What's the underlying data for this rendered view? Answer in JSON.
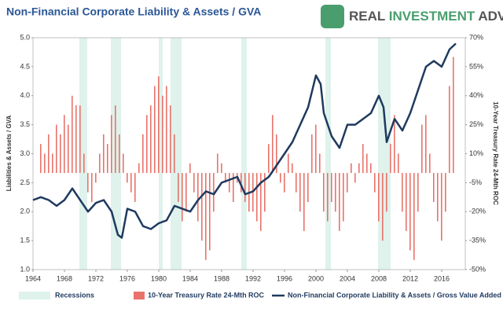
{
  "chart_data": {
    "type": "combo",
    "title": "Non-Financial Corporate Liability & Assets / GVA",
    "logo": [
      "REAL",
      "INVESTMENT",
      "ADVICE"
    ],
    "ylabel": "Liabilities & Assets / GVA",
    "y2label": "10-Year Treasury Rate 24-Mth ROC",
    "xlim": [
      1964,
      2019
    ],
    "xticks": [
      1964,
      1968,
      1972,
      1976,
      1980,
      1984,
      1988,
      1992,
      1996,
      2000,
      2004,
      2008,
      2012,
      2016
    ],
    "ylim": [
      1,
      5
    ],
    "yticks": [
      {
        "value": 1,
        "label": "1.0"
      },
      1.5,
      {
        "value": 2,
        "label": "2.0"
      },
      2.5,
      {
        "value": 3,
        "label": "3.0"
      },
      3.5,
      {
        "value": 4,
        "label": "4.0"
      },
      4.5,
      {
        "value": 5,
        "label": "5.0"
      }
    ],
    "y2lim": [
      -50,
      70
    ],
    "y2ticks": [
      {
        "value": -50,
        "label": "-50%"
      },
      {
        "value": -35,
        "label": "-35%"
      },
      {
        "value": -20,
        "label": "-20%"
      },
      {
        "value": -5,
        "label": "-5%"
      },
      {
        "value": 10,
        "label": "10%"
      },
      {
        "value": 25,
        "label": "25%"
      },
      {
        "value": 40,
        "label": "40%"
      },
      {
        "value": 55,
        "label": "55%"
      },
      {
        "value": 70,
        "label": "70%"
      }
    ],
    "recessions": {
      "name": "Recessions",
      "color": "#dff2ec",
      "spans": [
        [
          1969.9,
          1970.9
        ],
        [
          1973.9,
          1975.2
        ],
        [
          1980.0,
          1980.5
        ],
        [
          1981.5,
          1982.9
        ],
        [
          1990.5,
          1991.2
        ],
        [
          2001.2,
          2001.9
        ],
        [
          2007.9,
          2009.5
        ]
      ]
    },
    "series": [
      {
        "name": "10-Year Treasury Rate 24-Mth ROC",
        "type": "bar",
        "axis": "y2",
        "color": "#e8736b",
        "x": [
          1965,
          1965.5,
          1966,
          1966.5,
          1967,
          1967.5,
          1968,
          1968.5,
          1969,
          1969.5,
          1970,
          1970.5,
          1971,
          1971.5,
          1972,
          1972.5,
          1973,
          1973.5,
          1974,
          1974.5,
          1975,
          1975.5,
          1976,
          1976.5,
          1977,
          1977.5,
          1978,
          1978.5,
          1979,
          1979.5,
          1980,
          1980.5,
          1981,
          1981.5,
          1982,
          1982.5,
          1983,
          1983.5,
          1984,
          1984.5,
          1985,
          1985.5,
          1986,
          1986.5,
          1987,
          1987.5,
          1988,
          1988.5,
          1989,
          1989.5,
          1990,
          1990.5,
          1991,
          1991.5,
          1992,
          1992.5,
          1993,
          1993.5,
          1994,
          1994.5,
          1995,
          1995.5,
          1996,
          1996.5,
          1997,
          1997.5,
          1998,
          1998.5,
          1999,
          1999.5,
          2000,
          2000.5,
          2001,
          2001.5,
          2002,
          2002.5,
          2003,
          2003.5,
          2004,
          2004.5,
          2005,
          2005.5,
          2006,
          2006.5,
          2007,
          2007.5,
          2008,
          2008.5,
          2009,
          2009.5,
          2010,
          2010.5,
          2011,
          2011.5,
          2012,
          2012.5,
          2013,
          2013.5,
          2014,
          2014.5,
          2015,
          2015.5,
          2016,
          2016.5,
          2017,
          2017.5
        ],
        "values": [
          15,
          10,
          20,
          10,
          25,
          20,
          30,
          25,
          40,
          35,
          35,
          10,
          -10,
          -15,
          -5,
          10,
          20,
          15,
          30,
          35,
          20,
          10,
          -5,
          -10,
          -15,
          5,
          20,
          30,
          35,
          45,
          50,
          40,
          45,
          35,
          20,
          -15,
          -25,
          -20,
          5,
          -10,
          -25,
          -35,
          -45,
          -40,
          -20,
          10,
          5,
          -5,
          -10,
          -15,
          -5,
          -10,
          -15,
          -20,
          -20,
          -25,
          -30,
          -20,
          15,
          30,
          20,
          -5,
          -10,
          10,
          5,
          -10,
          -20,
          -30,
          -15,
          20,
          25,
          10,
          -20,
          -25,
          -15,
          -20,
          -30,
          -25,
          -10,
          5,
          -5,
          5,
          15,
          10,
          5,
          -10,
          -25,
          -35,
          -20,
          15,
          30,
          10,
          -20,
          -30,
          -40,
          -45,
          -20,
          25,
          30,
          10,
          -15,
          -25,
          -35,
          -20,
          45,
          60
        ]
      },
      {
        "name": "Non-Financial Corporate Liability & Assets / Gross Value Added",
        "type": "line",
        "color": "#1f3a5f",
        "x": [
          1964,
          1965,
          1966,
          1967,
          1968,
          1969,
          1970,
          1971,
          1972,
          1973,
          1974,
          1974.8,
          1975.3,
          1976,
          1977,
          1978,
          1979,
          1980,
          1981,
          1982,
          1983,
          1984,
          1985,
          1986,
          1987,
          1988,
          1989,
          1990,
          1991,
          1992,
          1993,
          1994,
          1995,
          1996,
          1997,
          1998,
          1999,
          2000,
          2000.6,
          2001,
          2002,
          2003,
          2004,
          2005,
          2006,
          2007,
          2008,
          2008.6,
          2009,
          2010,
          2011,
          2012,
          2013,
          2014,
          2015,
          2016,
          2017,
          2017.8
        ],
        "values": [
          2.2,
          2.25,
          2.2,
          2.1,
          2.2,
          2.4,
          2.2,
          2.0,
          2.15,
          2.2,
          2.0,
          1.6,
          1.55,
          2.05,
          2.0,
          1.75,
          1.7,
          1.8,
          1.85,
          2.1,
          2.05,
          2.0,
          2.2,
          2.35,
          2.3,
          2.5,
          2.55,
          2.6,
          2.3,
          2.35,
          2.5,
          2.6,
          2.8,
          3.0,
          3.2,
          3.5,
          3.8,
          4.35,
          4.2,
          3.7,
          3.3,
          3.1,
          3.5,
          3.5,
          3.6,
          3.7,
          4.0,
          3.8,
          3.2,
          3.6,
          3.4,
          3.7,
          4.1,
          4.5,
          4.6,
          4.5,
          4.8,
          4.9
        ]
      }
    ]
  }
}
